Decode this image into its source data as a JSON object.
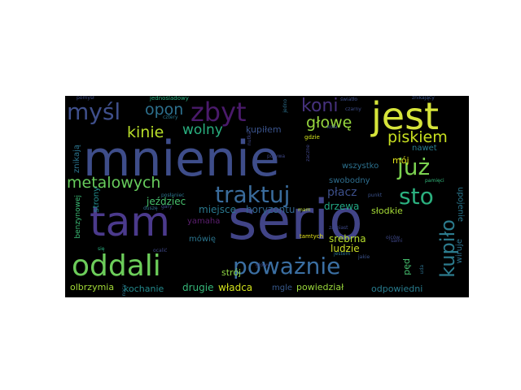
{
  "background": "#000000",
  "page_background": "#ffffff",
  "words": [
    {
      "text": "mnienie",
      "color": "#3e4d8a"
    },
    {
      "text": "tam",
      "color": "#4b3a8c"
    },
    {
      "text": "serio",
      "color": "#414487"
    },
    {
      "text": "jest",
      "color": "#d6e43a"
    },
    {
      "text": "oddali",
      "color": "#6ccd5a"
    },
    {
      "text": "poważnie",
      "color": "#3b6fa2"
    },
    {
      "text": "myśl",
      "color": "#3f4f8b"
    },
    {
      "text": "zbyt",
      "color": "#4a1a6b"
    },
    {
      "text": "traktuj",
      "color": "#3a6c9c"
    },
    {
      "text": "już",
      "color": "#7bd250"
    },
    {
      "text": "sto",
      "color": "#2bb07f"
    },
    {
      "text": "kupiło",
      "color": "#2c7c8e"
    },
    {
      "text": "metalowych",
      "color": "#67cc5c"
    },
    {
      "text": "koni",
      "color": "#46317d"
    },
    {
      "text": "opon",
      "color": "#2d708e"
    },
    {
      "text": "głowę",
      "color": "#98d83e"
    },
    {
      "text": "piskiem",
      "color": "#c8e020"
    },
    {
      "text": "kinie",
      "color": "#b8de29"
    },
    {
      "text": "wolny",
      "color": "#29af7f"
    },
    {
      "text": "jeździec",
      "color": "#48c16e"
    },
    {
      "text": "kupiłem",
      "color": "#3a538b"
    },
    {
      "text": "miejsce",
      "color": "#2a788e"
    },
    {
      "text": "horyzontu",
      "color": "#31668e"
    },
    {
      "text": "płacz",
      "color": "#3c4f8a"
    },
    {
      "text": "drzewa",
      "color": "#22a884"
    },
    {
      "text": "słodkie",
      "color": "#a5db36"
    },
    {
      "text": "swobodny",
      "color": "#2e6d8e"
    },
    {
      "text": "srebrna",
      "color": "#b5de2b"
    },
    {
      "text": "ludzie",
      "color": "#ccdf24"
    },
    {
      "text": "strój",
      "color": "#8fd744"
    },
    {
      "text": "władca",
      "color": "#d2e21b"
    },
    {
      "text": "drugie",
      "color": "#35b779"
    },
    {
      "text": "kochanie",
      "color": "#238a8d"
    },
    {
      "text": "olbrzymia",
      "color": "#a2da37"
    },
    {
      "text": "powiedział",
      "color": "#9bd93c"
    },
    {
      "text": "odpowiedni",
      "color": "#287c8e"
    },
    {
      "text": "mówię",
      "color": "#2b758e"
    },
    {
      "text": "yamaha",
      "color": "#5c1f70"
    },
    {
      "text": "strony",
      "color": "#228c8d"
    },
    {
      "text": "znikają",
      "color": "#2b748e"
    },
    {
      "text": "benzynowej",
      "color": "#3bbb75"
    },
    {
      "text": "nawet",
      "color": "#287d8e"
    },
    {
      "text": "wszystko",
      "color": "#2c718e"
    },
    {
      "text": "mój",
      "color": "#e3e418"
    },
    {
      "text": "upojenie",
      "color": "#2a778e"
    },
    {
      "text": "wiruje",
      "color": "#2c728e"
    },
    {
      "text": "pęd",
      "color": "#46c06f"
    },
    {
      "text": "mgle",
      "color": "#37598c"
    },
    {
      "text": "pomysł",
      "color": "#3d4e8a"
    },
    {
      "text": "jednośladowy",
      "color": "#29af7f"
    },
    {
      "text": "światło",
      "color": "#3d4e8a"
    },
    {
      "text": "znikający",
      "color": "#3a548c"
    },
    {
      "text": "cztery",
      "color": "#2a768e"
    },
    {
      "text": "czarny",
      "color": "#3e4c8a"
    },
    {
      "text": "jedno",
      "color": "#2d708e"
    },
    {
      "text": "koła",
      "color": "#3b518b"
    },
    {
      "text": "gdzie",
      "color": "#d0e11c"
    },
    {
      "text": "porywa",
      "color": "#3f4889"
    },
    {
      "text": "zaczne",
      "color": "#404688"
    },
    {
      "text": "pamięci",
      "color": "#32b67a"
    },
    {
      "text": "punkt",
      "color": "#3b528b"
    },
    {
      "text": "mam",
      "color": "#c0df25"
    },
    {
      "text": "posłaniec",
      "color": "#2b748e"
    },
    {
      "text": "gary",
      "color": "#3d4e8a"
    },
    {
      "text": "duszę",
      "color": "#2f6b8e"
    },
    {
      "text": "się",
      "color": "#29af7f"
    },
    {
      "text": "ocalić",
      "color": "#3f4788"
    },
    {
      "text": "tamtych",
      "color": "#e5e419"
    },
    {
      "text": "zamiast",
      "color": "#3e4989"
    },
    {
      "text": "jestem",
      "color": "#2c728e"
    },
    {
      "text": "głowy",
      "color": "#3d4e8a"
    },
    {
      "text": "ojców",
      "color": "#3e4989"
    },
    {
      "text": "uda",
      "color": "#2d708e"
    },
    {
      "text": "nutka",
      "color": "#3f4788"
    },
    {
      "text": "jakie",
      "color": "#3b528b"
    },
    {
      "text": "nocy",
      "color": "#2a778e"
    },
    {
      "text": "sami",
      "color": "#3f4788"
    }
  ]
}
